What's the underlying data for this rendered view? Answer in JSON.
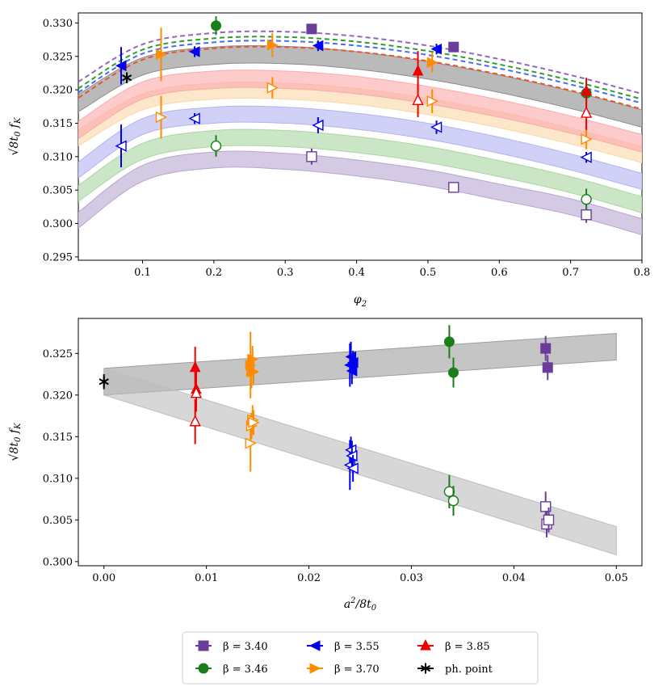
{
  "legend": {
    "entries": [
      {
        "label": "β = 3.40",
        "color": "#6a3d9a",
        "marker": "square"
      },
      {
        "label": "β = 3.46",
        "color": "#1a7f1a",
        "marker": "circle"
      },
      {
        "label": "β = 3.55",
        "color": "#0000ee",
        "marker": "left-triangle"
      },
      {
        "label": "β = 3.70",
        "color": "#ff8c00",
        "marker": "right-triangle"
      },
      {
        "label": "β = 3.85",
        "color": "#ee0000",
        "marker": "up-triangle"
      },
      {
        "label": "ph. point",
        "color": "#000000",
        "marker": "star"
      }
    ]
  },
  "chart_data": [
    {
      "type": "scatter",
      "title": "",
      "xlabel": "φ2",
      "ylabel": "√8t0 fK",
      "xlim": [
        0.01,
        0.8
      ],
      "ylim": [
        0.2945,
        0.3315
      ],
      "xticks": [
        0.1,
        0.2,
        0.3,
        0.4,
        0.5,
        0.6,
        0.7,
        0.8
      ],
      "yticks": [
        0.295,
        0.3,
        0.305,
        0.31,
        0.315,
        0.32,
        0.325,
        0.33
      ],
      "bands": [
        {
          "name": "β = 3.40",
          "color": "#b7a6d1",
          "x": [
            0.01,
            0.1,
            0.2,
            0.3,
            0.4,
            0.5,
            0.6,
            0.7,
            0.8
          ],
          "y": [
            0.3005,
            0.3075,
            0.3095,
            0.3093,
            0.3083,
            0.3068,
            0.3047,
            0.3025,
            0.2995
          ],
          "halfwidth": 0.0012
        },
        {
          "name": "β = 3.46",
          "color": "#a9d6a0",
          "x": [
            0.01,
            0.1,
            0.2,
            0.3,
            0.4,
            0.5,
            0.6,
            0.7,
            0.8
          ],
          "y": [
            0.3045,
            0.3108,
            0.3127,
            0.3127,
            0.3118,
            0.3103,
            0.3082,
            0.3058,
            0.3028
          ],
          "halfwidth": 0.0012
        },
        {
          "name": "β = 3.55",
          "color": "#b3b3f2",
          "x": [
            0.01,
            0.1,
            0.2,
            0.3,
            0.4,
            0.5,
            0.6,
            0.7,
            0.8
          ],
          "y": [
            0.308,
            0.3145,
            0.3162,
            0.3162,
            0.3153,
            0.3138,
            0.3117,
            0.3092,
            0.3063
          ],
          "halfwidth": 0.0012
        },
        {
          "name": "β = 3.70",
          "color": "#fcd7a6",
          "x": [
            0.01,
            0.1,
            0.2,
            0.3,
            0.4,
            0.5,
            0.6,
            0.7,
            0.8
          ],
          "y": [
            0.3128,
            0.3182,
            0.3198,
            0.3198,
            0.319,
            0.3175,
            0.3155,
            0.3131,
            0.3103
          ],
          "halfwidth": 0.0012
        },
        {
          "name": "β = 3.85",
          "color": "#fba9a9",
          "x": [
            0.01,
            0.1,
            0.2,
            0.3,
            0.4,
            0.5,
            0.6,
            0.7,
            0.8
          ],
          "y": [
            0.314,
            0.3199,
            0.3215,
            0.3215,
            0.3207,
            0.3192,
            0.3172,
            0.3148,
            0.312
          ],
          "halfwidth": 0.0013
        },
        {
          "name": "continuum",
          "color": "#8c8c8c",
          "x": [
            0.01,
            0.1,
            0.2,
            0.3,
            0.4,
            0.5,
            0.6,
            0.7,
            0.8
          ],
          "y": [
            0.318,
            0.3235,
            0.3251,
            0.3252,
            0.3244,
            0.3229,
            0.3209,
            0.3185,
            0.3157
          ],
          "halfwidth": 0.0013
        }
      ],
      "dashed_lines": [
        {
          "name": "β = 3.40",
          "color": "#9467bd",
          "x": [
            0.01,
            0.1,
            0.2,
            0.3,
            0.4,
            0.5,
            0.6,
            0.7,
            0.8
          ],
          "y": [
            0.3212,
            0.3268,
            0.3285,
            0.3287,
            0.328,
            0.3266,
            0.3246,
            0.3222,
            0.3194
          ]
        },
        {
          "name": "β = 3.46",
          "color": "#2ca02c",
          "x": [
            0.01,
            0.1,
            0.2,
            0.3,
            0.4,
            0.5,
            0.6,
            0.7,
            0.8
          ],
          "y": [
            0.3202,
            0.326,
            0.3277,
            0.3279,
            0.3272,
            0.3258,
            0.3238,
            0.3214,
            0.3186
          ]
        },
        {
          "name": "β = 3.55",
          "color": "#4a6cf7",
          "x": [
            0.01,
            0.1,
            0.2,
            0.3,
            0.4,
            0.5,
            0.6,
            0.7,
            0.8
          ],
          "y": [
            0.3196,
            0.3254,
            0.3271,
            0.3273,
            0.3266,
            0.3252,
            0.3232,
            0.3208,
            0.318
          ]
        },
        {
          "name": "β = 3.85",
          "color": "#e8542d",
          "x": [
            0.01,
            0.1,
            0.2,
            0.3,
            0.4,
            0.5,
            0.6,
            0.7,
            0.8
          ],
          "y": [
            0.3188,
            0.3245,
            0.3262,
            0.3264,
            0.3257,
            0.3243,
            0.3223,
            0.3199,
            0.3171
          ]
        }
      ],
      "series": [
        {
          "name": "β = 3.40",
          "color": "#6a3d9a",
          "marker": "square",
          "filled": [
            {
              "x": 0.337,
              "y": 0.3291,
              "err": 0.0004
            },
            {
              "x": 0.536,
              "y": 0.3264,
              "err": 0.0004
            }
          ],
          "open": [
            {
              "x": 0.337,
              "y": 0.31,
              "err": 0.0012
            },
            {
              "x": 0.536,
              "y": 0.3054,
              "err": 0.0008
            },
            {
              "x": 0.722,
              "y": 0.3013,
              "err": 0.0012
            }
          ]
        },
        {
          "name": "β = 3.46",
          "color": "#1a7f1a",
          "marker": "circle",
          "filled": [
            {
              "x": 0.203,
              "y": 0.3296,
              "err": 0.0014
            },
            {
              "x": 0.722,
              "y": 0.3195,
              "err": 0.0012
            }
          ],
          "open": [
            {
              "x": 0.203,
              "y": 0.3116,
              "err": 0.0016
            },
            {
              "x": 0.722,
              "y": 0.3036,
              "err": 0.0016
            }
          ]
        },
        {
          "name": "β = 3.55",
          "color": "#0000ee",
          "marker": "left-triangle",
          "filled": [
            {
              "x": 0.07,
              "y": 0.3236,
              "err": 0.0028
            },
            {
              "x": 0.173,
              "y": 0.3257,
              "err": 0.0008
            },
            {
              "x": 0.346,
              "y": 0.3266,
              "err": 0.0008
            },
            {
              "x": 0.512,
              "y": 0.3261,
              "err": 0.0008
            }
          ],
          "open": [
            {
              "x": 0.07,
              "y": 0.3116,
              "err": 0.0032
            },
            {
              "x": 0.173,
              "y": 0.3157,
              "err": 0.0008
            },
            {
              "x": 0.346,
              "y": 0.3147,
              "err": 0.0012
            },
            {
              "x": 0.512,
              "y": 0.3144,
              "err": 0.001
            },
            {
              "x": 0.722,
              "y": 0.3099,
              "err": 0.0008
            }
          ]
        },
        {
          "name": "β = 3.70",
          "color": "#ff8c00",
          "marker": "right-triangle",
          "filled": [
            {
              "x": 0.126,
              "y": 0.3253,
              "err": 0.004
            },
            {
              "x": 0.282,
              "y": 0.3267,
              "err": 0.0018
            },
            {
              "x": 0.506,
              "y": 0.3241,
              "err": 0.0015
            }
          ],
          "open": [
            {
              "x": 0.126,
              "y": 0.3159,
              "err": 0.0032
            },
            {
              "x": 0.282,
              "y": 0.3203,
              "err": 0.0016
            },
            {
              "x": 0.506,
              "y": 0.3183,
              "err": 0.0018
            },
            {
              "x": 0.722,
              "y": 0.3126,
              "err": 0.0015
            }
          ]
        },
        {
          "name": "β = 3.85",
          "color": "#ee0000",
          "marker": "up-triangle",
          "filled": [
            {
              "x": 0.486,
              "y": 0.3228,
              "err": 0.003
            },
            {
              "x": 0.722,
              "y": 0.3198,
              "err": 0.002
            }
          ],
          "open": [
            {
              "x": 0.486,
              "y": 0.3184,
              "err": 0.0025
            },
            {
              "x": 0.722,
              "y": 0.3165,
              "err": 0.0025
            }
          ]
        },
        {
          "name": "ph. point",
          "color": "#000000",
          "marker": "star",
          "filled": [
            {
              "x": 0.078,
              "y": 0.3218,
              "err": 0.0008
            }
          ],
          "open": []
        }
      ]
    },
    {
      "type": "scatter",
      "title": "",
      "xlabel": "a²/8t0",
      "ylabel": "√8t0 fK",
      "xlim": [
        -0.0025,
        0.0525
      ],
      "ylim": [
        0.2995,
        0.3292
      ],
      "xticks": [
        0.0,
        0.01,
        0.02,
        0.03,
        0.04,
        0.05
      ],
      "yticks": [
        0.3,
        0.305,
        0.31,
        0.315,
        0.32,
        0.325
      ],
      "bands": [
        {
          "name": "continuum upper",
          "color": "#9e9e9e",
          "x": [
            0.0,
            0.05
          ],
          "y": [
            0.3216,
            0.3258
          ],
          "halfwidth_start": 0.0016,
          "halfwidth_end": 0.0016
        },
        {
          "name": "continuum lower",
          "color": "#bdbdbd",
          "x": [
            0.0,
            0.05
          ],
          "y": [
            0.3216,
            0.3025
          ],
          "halfwidth_start": 0.0016,
          "halfwidth_end": 0.0017
        }
      ],
      "series": [
        {
          "name": "β = 3.40",
          "color": "#6a3d9a",
          "marker": "square",
          "filled": [
            {
              "x": 0.0431,
              "y": 0.3256,
              "err": 0.0015
            },
            {
              "x": 0.0433,
              "y": 0.3233,
              "err": 0.0015
            }
          ],
          "open": [
            {
              "x": 0.0431,
              "y": 0.3066,
              "err": 0.0018
            },
            {
              "x": 0.0432,
              "y": 0.3045,
              "err": 0.0016
            },
            {
              "x": 0.0434,
              "y": 0.305,
              "err": 0.0015
            }
          ]
        },
        {
          "name": "β = 3.46",
          "color": "#1a7f1a",
          "marker": "circle",
          "filled": [
            {
              "x": 0.0337,
              "y": 0.3264,
              "err": 0.002
            },
            {
              "x": 0.0341,
              "y": 0.3227,
              "err": 0.0018
            }
          ],
          "open": [
            {
              "x": 0.0337,
              "y": 0.3084,
              "err": 0.002
            },
            {
              "x": 0.0341,
              "y": 0.3073,
              "err": 0.0018
            }
          ]
        },
        {
          "name": "β = 3.55",
          "color": "#0000ee",
          "marker": "left-triangle",
          "filled": [
            {
              "x": 0.024,
              "y": 0.3236,
              "err": 0.0026
            },
            {
              "x": 0.0241,
              "y": 0.3246,
              "err": 0.0018
            },
            {
              "x": 0.0242,
              "y": 0.3229,
              "err": 0.0016
            },
            {
              "x": 0.0243,
              "y": 0.3239,
              "err": 0.0014
            }
          ],
          "open": [
            {
              "x": 0.024,
              "y": 0.3116,
              "err": 0.003
            },
            {
              "x": 0.0241,
              "y": 0.3134,
              "err": 0.0016
            },
            {
              "x": 0.0242,
              "y": 0.3127,
              "err": 0.0018
            },
            {
              "x": 0.0243,
              "y": 0.3112,
              "err": 0.0016
            }
          ]
        },
        {
          "name": "β = 3.70",
          "color": "#ff8c00",
          "marker": "right-triangle",
          "filled": [
            {
              "x": 0.0143,
              "y": 0.3236,
              "err": 0.004
            },
            {
              "x": 0.0144,
              "y": 0.3228,
              "err": 0.002
            },
            {
              "x": 0.0145,
              "y": 0.3243,
              "err": 0.0016
            },
            {
              "x": 0.0146,
              "y": 0.3228,
              "err": 0.0015
            }
          ],
          "open": [
            {
              "x": 0.0143,
              "y": 0.3142,
              "err": 0.0034
            },
            {
              "x": 0.0144,
              "y": 0.3163,
              "err": 0.0016
            },
            {
              "x": 0.0145,
              "y": 0.317,
              "err": 0.0018
            },
            {
              "x": 0.0146,
              "y": 0.3167,
              "err": 0.0015
            }
          ]
        },
        {
          "name": "β = 3.85",
          "color": "#ee0000",
          "marker": "up-triangle",
          "filled": [
            {
              "x": 0.0089,
              "y": 0.3233,
              "err": 0.0025
            },
            {
              "x": 0.009,
              "y": 0.3207,
              "err": 0.0022
            }
          ],
          "open": [
            {
              "x": 0.0089,
              "y": 0.3168,
              "err": 0.0027
            },
            {
              "x": 0.009,
              "y": 0.3202,
              "err": 0.0022
            }
          ]
        },
        {
          "name": "ph. point",
          "color": "#000000",
          "marker": "star",
          "filled": [
            {
              "x": 0.0,
              "y": 0.3216,
              "err": 0.0009
            }
          ],
          "open": []
        }
      ]
    }
  ]
}
